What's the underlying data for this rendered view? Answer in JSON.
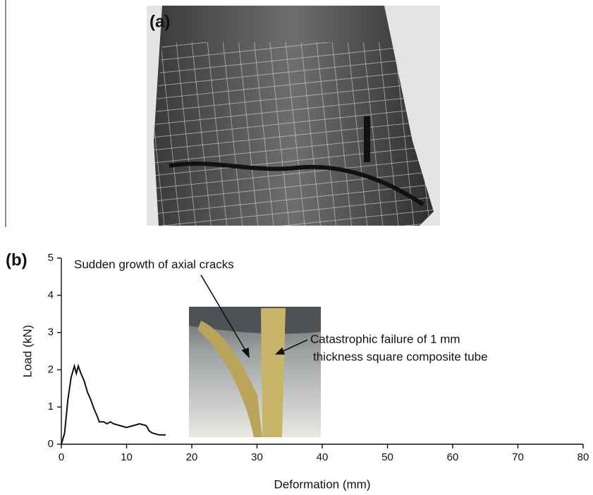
{
  "figure": {
    "panel_a_label": "(a)"
  },
  "chart_data": {
    "type": "line",
    "panel_label": "(b)",
    "x_label": "Deformation (mm)",
    "y_label": "Load (kN)",
    "x": [
      0,
      0.5,
      1,
      1.5,
      2,
      2.3,
      2.6,
      3,
      3.5,
      4,
      4.5,
      5,
      5.5,
      5.8,
      6.5,
      7,
      7.5,
      8,
      9,
      10,
      11,
      12,
      13,
      13.5,
      14,
      15,
      16
    ],
    "values": [
      0,
      0.3,
      1.2,
      1.8,
      2.1,
      1.9,
      2.1,
      1.9,
      1.7,
      1.4,
      1.2,
      0.95,
      0.75,
      0.6,
      0.6,
      0.55,
      0.6,
      0.55,
      0.5,
      0.45,
      0.5,
      0.55,
      0.5,
      0.35,
      0.3,
      0.25,
      0.25
    ],
    "color": "#111111",
    "xlim": [
      0,
      80
    ],
    "xticks": [
      0,
      10,
      20,
      30,
      40,
      50,
      60,
      70,
      80
    ],
    "ylim": [
      0,
      5
    ],
    "yticks": [
      0,
      1,
      2,
      3,
      4,
      5
    ],
    "annotations": [
      {
        "text": "Sudden growth of axial cracks"
      },
      {
        "lines": [
          "Catastrophic failure of 1 mm",
          "thickness square composite tube"
        ]
      }
    ]
  }
}
